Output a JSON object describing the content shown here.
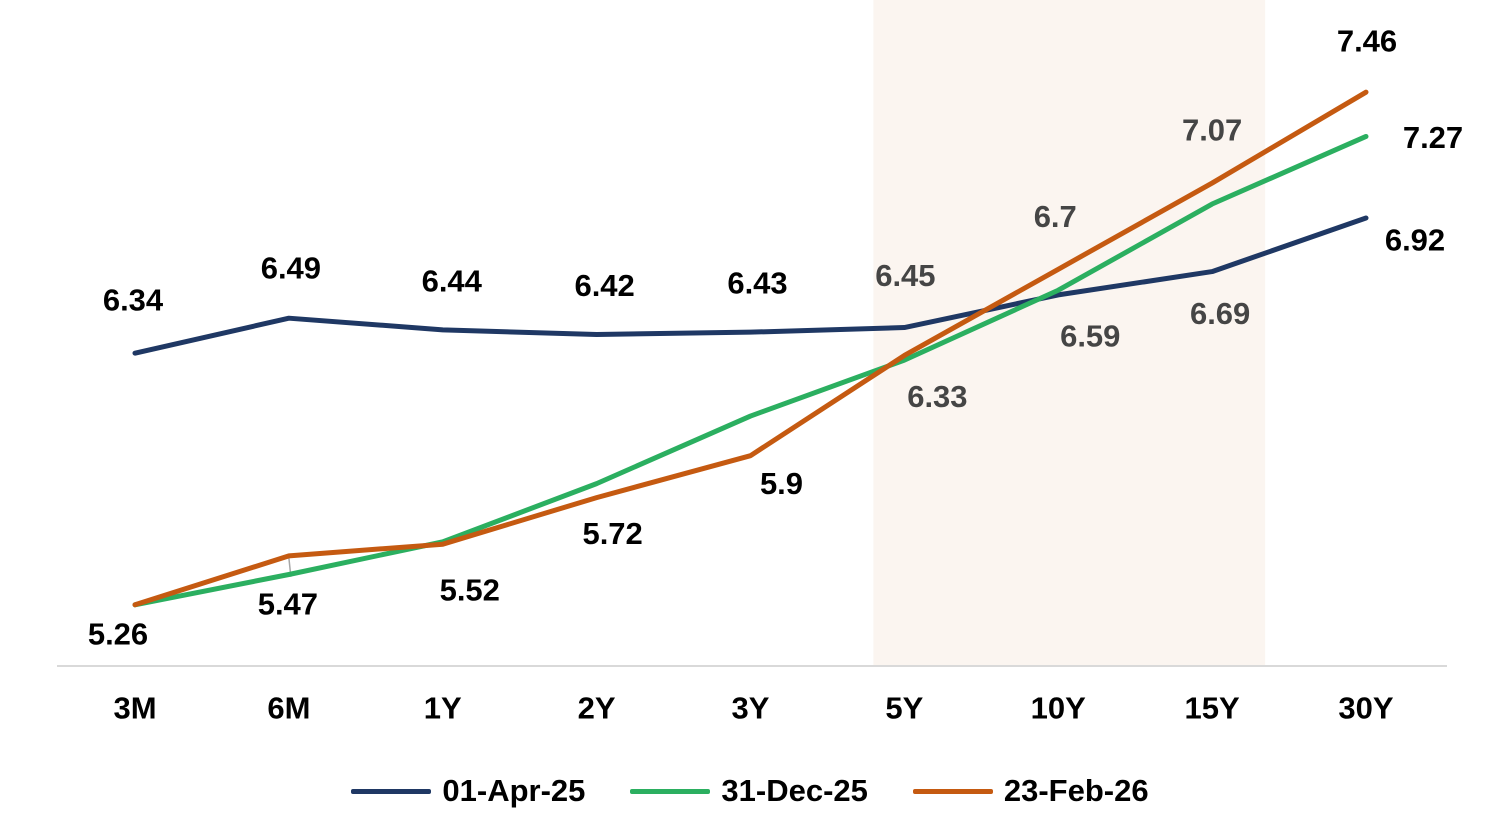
{
  "chart_data": {
    "type": "line",
    "title": "",
    "xlabel": "",
    "ylabel": "",
    "grid": false,
    "legend_position": "bottom",
    "categories": [
      "3M",
      "6M",
      "1Y",
      "2Y",
      "3Y",
      "5Y",
      "10Y",
      "15Y",
      "30Y"
    ],
    "series": [
      {
        "name": "01-Apr-25",
        "color": "#1F3864",
        "values": [
          6.34,
          6.49,
          6.44,
          6.42,
          6.43,
          6.45,
          6.59,
          6.69,
          6.92
        ],
        "data_labels": [
          "6.34",
          "6.49",
          "6.44",
          "6.42",
          "6.43",
          "6.45",
          "6.59",
          "6.69",
          "6.92"
        ]
      },
      {
        "name": "31-Dec-25",
        "color": "#2BAF60",
        "values": [
          5.26,
          5.39,
          5.53,
          5.78,
          6.07,
          6.31,
          6.61,
          6.98,
          7.27
        ],
        "data_labels": [
          null,
          null,
          null,
          null,
          null,
          null,
          null,
          null,
          "7.27"
        ]
      },
      {
        "name": "23-Feb-26",
        "color": "#C55A11",
        "values": [
          5.26,
          5.47,
          5.52,
          5.72,
          5.9,
          6.33,
          6.7,
          7.07,
          7.46
        ],
        "data_labels": [
          "5.26",
          "5.47",
          "5.52",
          "5.72",
          "5.9",
          "6.33",
          "6.7",
          "7.07",
          "7.46"
        ]
      }
    ],
    "ylim": [
      5.0,
      7.75
    ],
    "highlight_band": {
      "from_category": "5Y",
      "to_category": "15Y",
      "color": "#FBF5F0"
    },
    "label_colors": {
      "default": "#000000",
      "inside_band": "#454545"
    },
    "axis_line_color": "#D9D9D9",
    "label_leader_line": {
      "series": "23-Feb-26",
      "category": "6M",
      "label": "5.47"
    }
  }
}
